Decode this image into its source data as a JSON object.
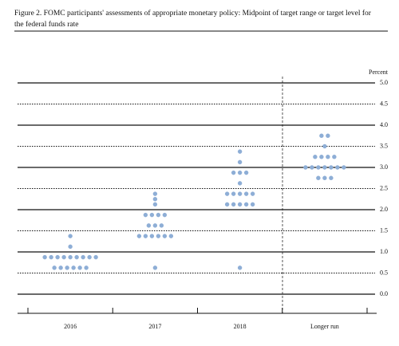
{
  "chart_data": {
    "type": "dot",
    "title_lines": [
      "Figure 2. FOMC participants' assessments of appropriate monetary policy: Midpoint of target range or target level for",
      "the federal funds rate"
    ],
    "y_label": "Percent",
    "categories": [
      "2016",
      "2017",
      "2018",
      "Longer run"
    ],
    "dots": [
      [
        {
          "rate": 1.375,
          "count": 1
        },
        {
          "rate": 1.125,
          "count": 1
        },
        {
          "rate": 0.875,
          "count": 9
        },
        {
          "rate": 0.625,
          "count": 6
        }
      ],
      [
        {
          "rate": 2.375,
          "count": 1
        },
        {
          "rate": 2.25,
          "count": 1
        },
        {
          "rate": 2.125,
          "count": 1
        },
        {
          "rate": 1.875,
          "count": 4
        },
        {
          "rate": 1.625,
          "count": 3
        },
        {
          "rate": 1.375,
          "count": 6
        },
        {
          "rate": 0.625,
          "count": 1
        }
      ],
      [
        {
          "rate": 3.375,
          "count": 1
        },
        {
          "rate": 3.125,
          "count": 1
        },
        {
          "rate": 2.875,
          "count": 3
        },
        {
          "rate": 2.625,
          "count": 1
        },
        {
          "rate": 2.375,
          "count": 5
        },
        {
          "rate": 2.125,
          "count": 5
        },
        {
          "rate": 0.625,
          "count": 1
        }
      ],
      [
        {
          "rate": 3.75,
          "count": 2
        },
        {
          "rate": 3.5,
          "count": 1
        },
        {
          "rate": 3.25,
          "count": 4
        },
        {
          "rate": 3.0,
          "count": 7
        },
        {
          "rate": 2.75,
          "count": 3
        }
      ]
    ],
    "color": "#8eaed6",
    "ylim": [
      0,
      5
    ],
    "yticks": [
      {
        "value": 0,
        "label": "0.0"
      },
      0.5,
      {
        "value": 1,
        "label": "1.0"
      },
      1.5,
      {
        "value": 2,
        "label": "2.0"
      },
      2.5,
      {
        "value": 3,
        "label": "3.0"
      },
      3.5,
      {
        "value": 4,
        "label": "4.0"
      },
      4.5,
      {
        "value": 5,
        "label": "5.0"
      }
    ],
    "grid": true
  }
}
